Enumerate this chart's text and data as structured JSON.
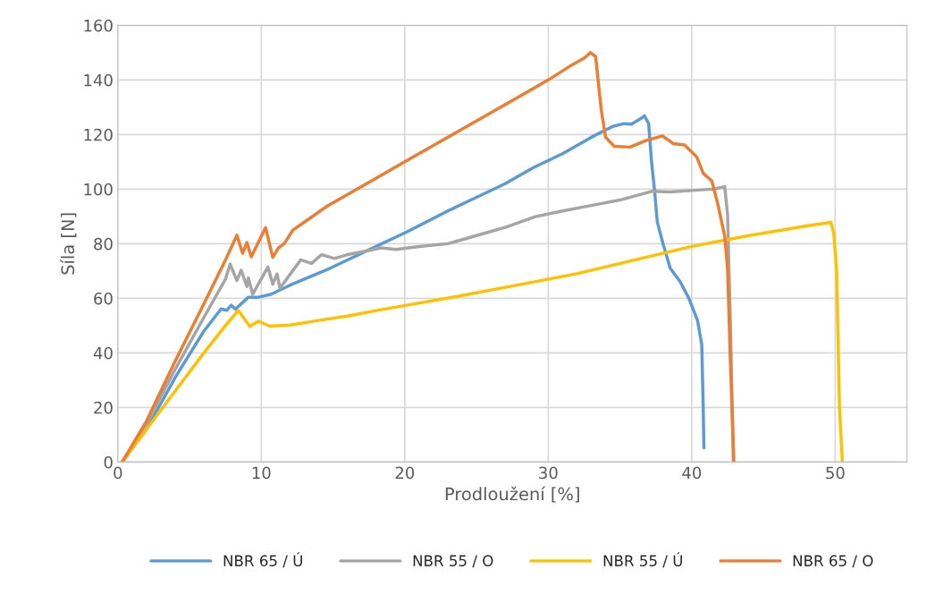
{
  "chart_data": {
    "type": "line",
    "xlabel": "Prodloužení [%]",
    "ylabel": "Síla [N]",
    "xlim": [
      0,
      55
    ],
    "xticks": [
      0,
      10,
      20,
      30,
      40,
      50
    ],
    "ylim": [
      0,
      160
    ],
    "yticks": [
      0,
      20,
      40,
      60,
      80,
      100,
      120,
      140,
      160
    ],
    "grid": true,
    "legend": "bottom",
    "marker": "none",
    "line_style": "solid",
    "series": [
      {
        "name": "NBR 65 / Ú",
        "color": "#5b9bd5",
        "x": [
          0.3,
          2,
          4,
          6,
          7.2,
          7.6,
          7.9,
          8.2,
          9.1,
          9.8,
          10.7,
          12,
          14.5,
          17.8,
          20.1,
          23,
          25,
          27,
          29,
          31,
          33,
          34.5,
          35.3,
          35.8,
          36.5,
          36.7,
          37.0,
          37.2,
          37.4,
          37.6,
          38,
          38.5,
          39.2,
          39.8,
          40.4,
          40.7,
          40.8,
          40.85
        ],
        "values": [
          0,
          12,
          31,
          48,
          56.1,
          55.6,
          57.5,
          56,
          60.4,
          60.4,
          61.5,
          64.8,
          70.3,
          78.5,
          84.2,
          92,
          97,
          102,
          108,
          113,
          119,
          123,
          124,
          123.8,
          126,
          126.9,
          124,
          110,
          100,
          88,
          80,
          71,
          66,
          60,
          52,
          43,
          20,
          5.2
        ]
      },
      {
        "name": "NBR 55 / O",
        "color": "#a5a5a5",
        "x": [
          0.3,
          2,
          4,
          6,
          7.5,
          7.83,
          8.3,
          8.6,
          9.0,
          9.1,
          9.4,
          10.46,
          10.8,
          11.1,
          11.3,
          12.75,
          13.5,
          14.2,
          15.1,
          16,
          17,
          18.35,
          19.4,
          21,
          23,
          25,
          27,
          29.1,
          31,
          33,
          35,
          37.2,
          38.5,
          40,
          41.5,
          42.3,
          42.5,
          42.7,
          42.9
        ],
        "values": [
          0,
          14,
          34,
          53,
          67,
          72.5,
          66.5,
          70.3,
          64.3,
          67.5,
          61.5,
          71.5,
          65.2,
          68.9,
          63.7,
          74.1,
          72.8,
          76,
          74.6,
          76,
          77,
          78.5,
          77.9,
          79,
          80,
          83,
          86,
          89.9,
          92,
          94,
          96,
          99.2,
          99,
          99.5,
          100,
          100.9,
          90.5,
          50,
          0
        ]
      },
      {
        "name": "NBR 55 / Ú",
        "color": "#ffc000",
        "x": [
          0.3,
          2,
          4,
          6,
          7.5,
          8.4,
          9.2,
          9.8,
          10.6,
          12,
          14.4,
          16,
          18,
          20.4,
          24,
          28,
          32,
          36,
          40,
          44,
          48,
          49.7,
          49.9,
          50.1,
          50.3,
          50.5
        ],
        "values": [
          0,
          12,
          26,
          40,
          50,
          55.5,
          49.7,
          51.6,
          49.8,
          50.2,
          52.2,
          53.5,
          55.5,
          57.7,
          61,
          65,
          69,
          74,
          79,
          83,
          86.5,
          87.8,
          84,
          70,
          20,
          0
        ]
      },
      {
        "name": "NBR 65 / O",
        "color": "#ed7d31",
        "x": [
          0.3,
          2,
          4,
          6,
          7.5,
          8.3,
          8.7,
          9.0,
          9.3,
          10.3,
          10.8,
          11.2,
          11.6,
          12.2,
          13,
          14.6,
          16,
          18,
          20,
          22,
          24,
          26,
          28,
          30,
          31.5,
          32.5,
          32.94,
          33.3,
          33.7,
          34.0,
          34.6,
          35.7,
          36.8,
          37.96,
          38.7,
          39.5,
          40.35,
          40.8,
          41.4,
          41.8,
          42.3,
          42.5,
          42.7,
          42.94
        ],
        "values": [
          0,
          15,
          37,
          58,
          74,
          83.1,
          76.5,
          80.4,
          75.2,
          85.9,
          75,
          78.5,
          80,
          85,
          87.9,
          93.8,
          98,
          104,
          110,
          116,
          122,
          128,
          134,
          140,
          145,
          148,
          150,
          148.6,
          128.8,
          119,
          115.7,
          115.4,
          117.8,
          119.5,
          116.7,
          116.2,
          111.8,
          105.8,
          103,
          94.9,
          82.8,
          70.8,
          35.8,
          0
        ]
      }
    ]
  }
}
